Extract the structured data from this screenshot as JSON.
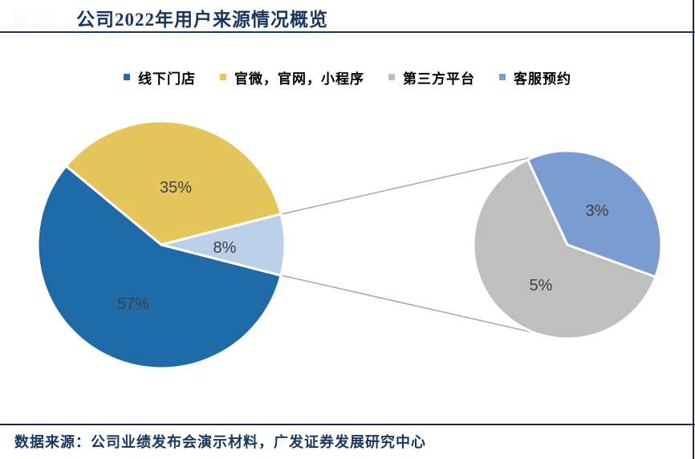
{
  "figure": {
    "fig_number": "图23：",
    "title": "公司2022年用户来源情况概览",
    "source_note": "数据来源：公司业绩发布会演示材料，广发证券发展研究中心"
  },
  "colors": {
    "title_navy": "#17375E",
    "rule_dark": "#1C2B4A",
    "offline_stores_blue": "#1F6BA8",
    "official_channels_yellow": "#E4C55C",
    "grouped_other_light_blue": "#BCCFE8",
    "third_party_gray": "#BFBFBF",
    "customer_service_blue": "#7A9CD0",
    "connector_gray": "#A6A6A6",
    "data_label_gray": "#404040"
  },
  "legend": {
    "items": [
      {
        "label": "线下门店",
        "color": "#1F6BA8"
      },
      {
        "label": "官微，官网，小程序",
        "color": "#E4C55C"
      },
      {
        "label": "第三方平台",
        "color": "#BFBFBF"
      },
      {
        "label": "客服预约",
        "color": "#7A9CD0"
      }
    ]
  },
  "chart_data": {
    "type": "pie",
    "subtype": "pie_of_pie",
    "title": "公司2022年用户来源情况概览",
    "legend_position": "top",
    "units": "%",
    "main_pie": {
      "slices": [
        {
          "label": "线下门店",
          "value": 57,
          "label_text": "57%",
          "color": "#1F6BA8"
        },
        {
          "label": "官微，官网，小程序",
          "value": 35,
          "label_text": "35%",
          "color": "#E4C55C"
        },
        {
          "label": "",
          "value": 8,
          "label_text": "8%",
          "color": "#BCCFE8",
          "grouped": true
        }
      ]
    },
    "secondary_pie": {
      "slices": [
        {
          "label": "第三方平台",
          "value": 5,
          "label_text": "5%",
          "color": "#BFBFBF"
        },
        {
          "label": "客服预约",
          "value": 3,
          "label_text": "3%",
          "color": "#7A9CD0"
        }
      ]
    }
  }
}
